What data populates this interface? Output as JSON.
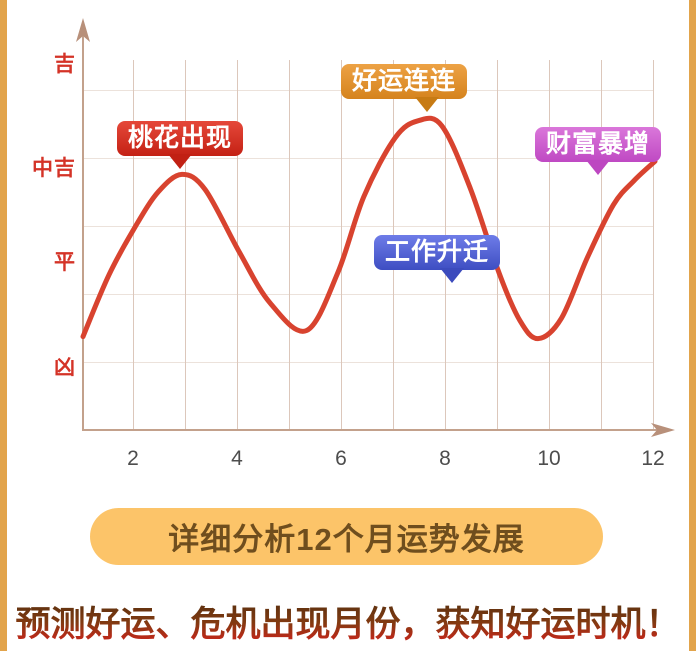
{
  "page": {
    "background": "#ffffff",
    "side_stripe_color": "#e2a44c"
  },
  "chart_data": {
    "type": "line",
    "title": "",
    "xlabel": "",
    "ylabel": "",
    "x_range": [
      1,
      12
    ],
    "x_ticks": [
      "2",
      "4",
      "6",
      "8",
      "10",
      "12"
    ],
    "y_tick_labels_top_to_bottom": [
      "吉",
      "中吉",
      "平",
      "凶"
    ],
    "y_level_scale": {
      "凶": 1,
      "平": 2,
      "中吉": 3,
      "吉": 4
    },
    "grid": true,
    "legend": false,
    "line_color": "#d8432f",
    "axis_color": "#c3a18c",
    "grid_v_color": "#dcc7bb",
    "grid_h_color": "#ece2db",
    "points": [
      [
        1.0,
        1.32
      ],
      [
        1.5,
        1.93
      ],
      [
        2.0,
        2.4
      ],
      [
        2.45,
        2.75
      ],
      [
        2.9,
        2.92
      ],
      [
        3.35,
        2.77
      ],
      [
        4.0,
        2.16
      ],
      [
        4.6,
        1.65
      ],
      [
        5.3,
        1.38
      ],
      [
        5.9,
        1.95
      ],
      [
        6.4,
        2.7
      ],
      [
        7.0,
        3.28
      ],
      [
        7.45,
        3.45
      ],
      [
        7.9,
        3.4
      ],
      [
        8.45,
        2.78
      ],
      [
        9.0,
        1.95
      ],
      [
        9.4,
        1.48
      ],
      [
        9.75,
        1.3
      ],
      [
        10.2,
        1.5
      ],
      [
        10.7,
        2.1
      ],
      [
        11.2,
        2.62
      ],
      [
        11.6,
        2.86
      ],
      [
        12.0,
        3.05
      ]
    ],
    "annotations": [
      {
        "label": "桃花出现",
        "month": 2.9,
        "level": "中吉",
        "color": "#c42114"
      },
      {
        "label": "好运连连",
        "month": 7.6,
        "level": "吉",
        "color": "#d5831d"
      },
      {
        "label": "工作升迁",
        "month": 8.1,
        "level": "平",
        "color": "#3e4ec2"
      },
      {
        "label": "财富暴增",
        "month": 11.0,
        "level": "中吉",
        "color": "#bf49c3"
      }
    ]
  },
  "cta_button": {
    "label": "详细分析12个月运势发展",
    "bg_color": "#fcc469",
    "text_color": "#6f4e1e"
  },
  "headline": {
    "text": "预测好运、危机出现月份，获知好运时机！"
  }
}
